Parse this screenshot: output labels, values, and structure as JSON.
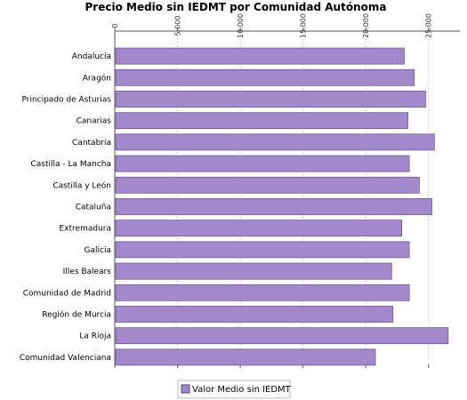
{
  "chart_data": {
    "type": "bar",
    "orientation": "horizontal",
    "title": "Precio Medio sin IEDMT por Comunidad Autónoma",
    "xlabel": "",
    "ylabel": "",
    "xlim": [
      0,
      27500
    ],
    "ticks": [
      0,
      5000,
      10000,
      15000,
      20000,
      25000
    ],
    "tick_labels": [
      "0",
      "5.000",
      "10.000",
      "15.000",
      "20.000",
      "25.000"
    ],
    "categories": [
      "Andalucía",
      "Aragón",
      "Principado de Asturias",
      "Canarias",
      "Cantabria",
      "Castilla - La Mancha",
      "Castilla y León",
      "Cataluña",
      "Extremadura",
      "Galicia",
      "Illes Balears",
      "Comunidad de Madrid",
      "Región de Murcia",
      "La Rioja",
      "Comunidad Valenciana"
    ],
    "series": [
      {
        "name": "Valor Medio sin IEDMT",
        "values": [
          23000,
          23800,
          24700,
          23300,
          25400,
          23400,
          24200,
          25200,
          22800,
          23400,
          22000,
          23400,
          22100,
          26500,
          20700
        ]
      }
    ],
    "grid": true,
    "legend_position": "bottom",
    "colors": {
      "bar_fill": "#a388cc",
      "bar_stroke": "#55437a",
      "grid": "#cccccc",
      "axis": "#555555",
      "legend_border": "#bbbbbb"
    }
  }
}
